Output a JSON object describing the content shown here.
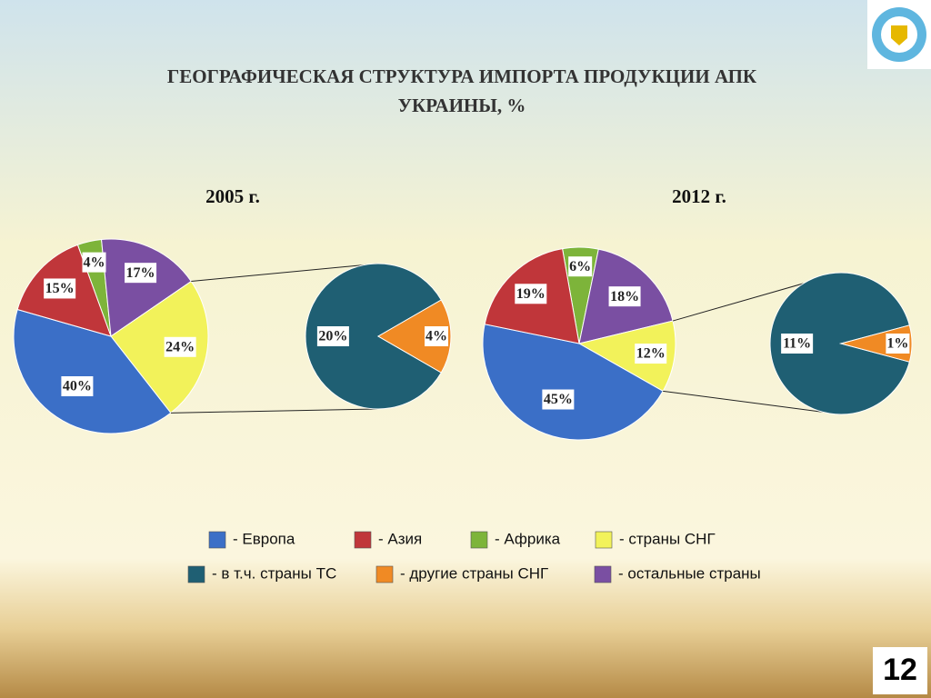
{
  "title": "ГЕОГРАФИЧЕСКАЯ СТРУКТУРА ИМПОРТА ПРОДУКЦИИ АПК УКРАИНЫ,  %",
  "page_number": "12",
  "chart_data": [
    {
      "type": "pie",
      "title": "2005 г.",
      "values": [
        4,
        17,
        24,
        40,
        15
      ],
      "value_labels": [
        "4%",
        "17%",
        "24%",
        "40%",
        "15%"
      ],
      "colors": [
        "#7db43a",
        "#7a4fa2",
        "#f2f25a",
        "#3b6fc7",
        "#c0363a"
      ],
      "sub": {
        "values": [
          20,
          4
        ],
        "value_labels": [
          "20%",
          "4%"
        ],
        "colors": [
          "#1f5f73",
          "#f08a24"
        ]
      }
    },
    {
      "type": "pie",
      "title": "2012 г.",
      "values": [
        6,
        18,
        12,
        45,
        19
      ],
      "value_labels": [
        "6%",
        "18%",
        "12%",
        "45%",
        "19%"
      ],
      "colors": [
        "#7db43a",
        "#7a4fa2",
        "#f2f25a",
        "#3b6fc7",
        "#c0363a"
      ],
      "sub": {
        "values": [
          11,
          1
        ],
        "value_labels": [
          "11%",
          "1%"
        ],
        "colors": [
          "#1f5f73",
          "#f08a24"
        ]
      }
    }
  ],
  "legend": [
    {
      "label": "- Европа",
      "color": "#3b6fc7"
    },
    {
      "label": "- Азия",
      "color": "#c0363a"
    },
    {
      "label": "- Африка",
      "color": "#7db43a"
    },
    {
      "label": "- страны  СНГ",
      "color": "#f2f25a"
    },
    {
      "label": "- в т.ч. страны ТС",
      "color": "#1f5f73"
    },
    {
      "label": "- другие страны СНГ",
      "color": "#f08a24"
    },
    {
      "label": "- остальные страны",
      "color": "#7a4fa2"
    }
  ]
}
